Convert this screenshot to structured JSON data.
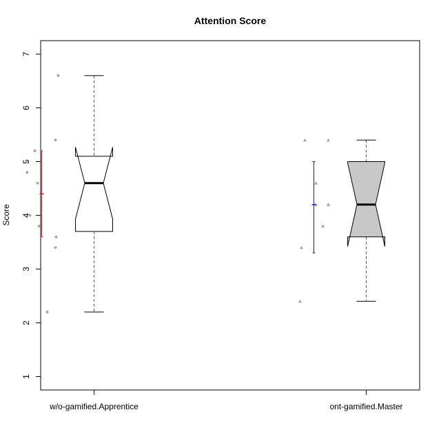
{
  "chart_data": {
    "type": "boxplot",
    "title": "Attention Score",
    "xlabel": "",
    "ylabel": "Score",
    "ylim": [
      0.75,
      7.25
    ],
    "yticks": [
      1,
      2,
      3,
      4,
      5,
      6,
      7
    ],
    "ytick_labels": [
      "1",
      "2",
      "3",
      "4",
      "5",
      "6",
      "7"
    ],
    "grid": false,
    "notched": true,
    "categories": [
      "w/o-gamified.Apprentice",
      "ont-gamified.Master"
    ],
    "groups": [
      {
        "category": "w/o-gamified.Apprentice",
        "box_fill": "#ffffff",
        "min": 2.2,
        "q1": 3.7,
        "median": 4.6,
        "q3": 5.1,
        "max": 6.6,
        "notch_low": 3.93,
        "notch_high": 5.27,
        "mean": 4.4,
        "mean_ci": [
          3.6,
          5.2
        ],
        "ci_color": "#e8141c",
        "point_shape": "circle",
        "points": [
          6.6,
          5.4,
          5.2,
          5.0,
          4.8,
          4.6,
          4.0,
          3.8,
          3.6,
          3.4,
          2.2
        ]
      },
      {
        "category": "ont-gamified.Master",
        "box_fill": "#c8c8c8",
        "min": 2.4,
        "q1": 3.6,
        "median": 4.2,
        "q3": 5.0,
        "max": 5.4,
        "notch_low": 3.42,
        "notch_high": 4.98,
        "mean": 4.2,
        "mean_ci": [
          3.3,
          5.0
        ],
        "ci_color": "#1a1adc",
        "point_shape": "triangle",
        "points": [
          5.4,
          5.4,
          4.6,
          4.2,
          4.2,
          3.8,
          3.4,
          2.4
        ]
      }
    ]
  }
}
